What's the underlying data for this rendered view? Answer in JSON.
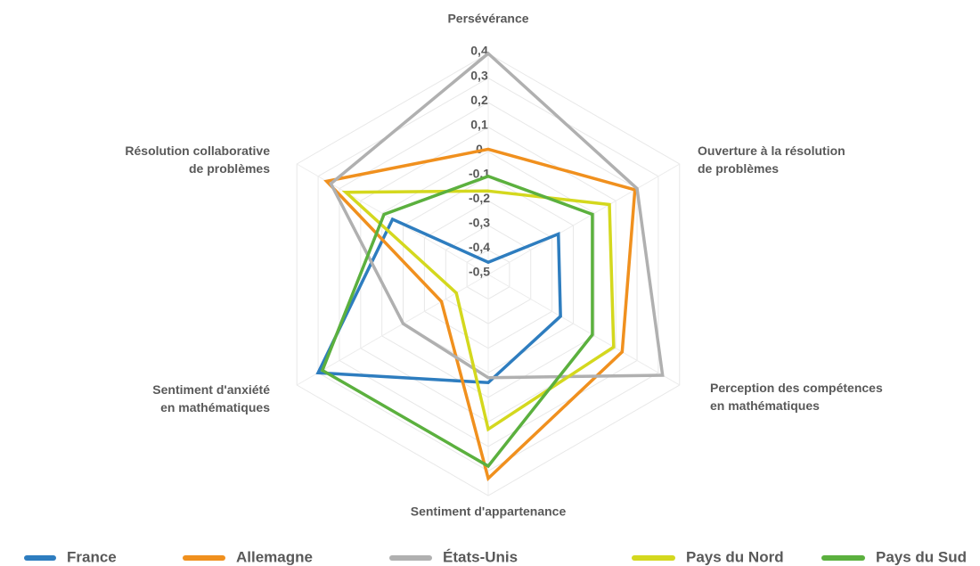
{
  "chart_data": {
    "type": "radar",
    "categories": [
      "Persévérance",
      "Ouverture à la résolution\nde problèmes",
      "Perception des compétences\nen mathématiques",
      "Sentiment d'appartenance",
      "Sentiment d'anxiété\nen mathématiques",
      "Résolution collaborative\nde problèmes"
    ],
    "series": [
      {
        "name": "France",
        "color": "#2e7dbf",
        "values": [
          -0.45,
          -0.17,
          -0.16,
          -0.06,
          0.3,
          -0.05
        ]
      },
      {
        "name": "Allemagne",
        "color": "#f0901e",
        "values": [
          0.01,
          0.19,
          0.13,
          0.33,
          -0.28,
          0.26
        ]
      },
      {
        "name": "États-Unis",
        "color": "#b0b0b0",
        "values": [
          0.4,
          0.2,
          0.32,
          -0.08,
          -0.1,
          0.24
        ]
      },
      {
        "name": "Pays du Nord",
        "color": "#d4d81e",
        "values": [
          -0.16,
          0.07,
          0.09,
          0.13,
          -0.35,
          0.17
        ]
      },
      {
        "name": "Pays du Sud",
        "color": "#5bb03e",
        "values": [
          -0.1,
          -0.01,
          -0.01,
          0.28,
          0.28,
          -0.01
        ]
      }
    ],
    "rlim": [
      -0.5,
      0.4
    ],
    "rticks": [
      {
        "value": 0.4,
        "label": "0,4"
      },
      {
        "value": 0.3,
        "label": "0,3"
      },
      {
        "value": 0.2,
        "label": "0,2"
      },
      {
        "value": 0.1,
        "label": "0,1"
      },
      0,
      {
        "value": -0.1,
        "label": "-0,1"
      },
      {
        "value": -0.2,
        "label": "-0,2"
      },
      {
        "value": -0.3,
        "label": "-0,3"
      },
      {
        "value": -0.4,
        "label": "-0,4"
      },
      {
        "value": -0.5,
        "label": "-0,5"
      }
    ],
    "grid": true,
    "legend": "bottom"
  }
}
